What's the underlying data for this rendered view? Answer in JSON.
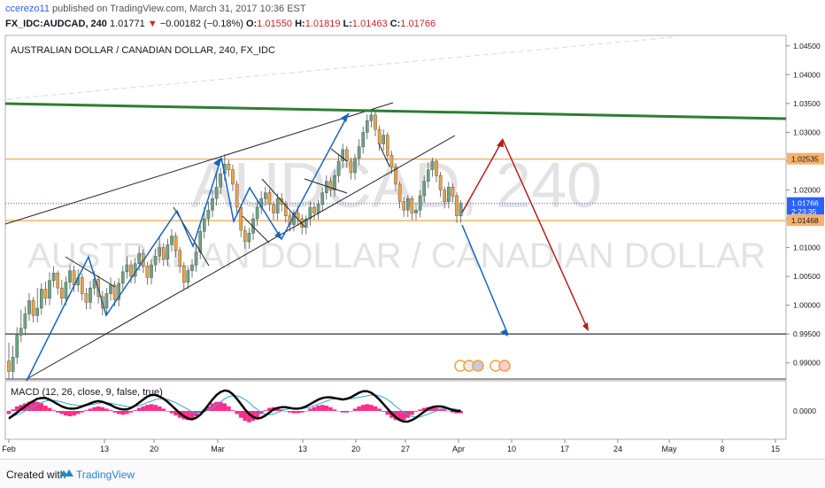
{
  "header": {
    "user": "ccerezo11",
    "published_text": "published on TradingView.com, March 31, 2017 10:36 EST",
    "symbol": "FX_IDC:AUDCAD, 240",
    "last": "1.01771",
    "change_arrow": "▼",
    "change": "−0.00182 (−0.18%)",
    "open_label": "O:",
    "open": "1.01550",
    "high_label": "H:",
    "high": "1.01819",
    "low_label": "L:",
    "low": "1.01463",
    "close_label": "C:",
    "close": "1.01766"
  },
  "chart_data": {
    "type": "candlestick",
    "title": "AUSTRALIAN DOLLAR / CANADIAN DOLLAR, 240, FX_IDC",
    "watermark_symbol": "AUDCAD, 240",
    "watermark_name": "AUSTRALIAN DOLLAR / CANADIAN DOLLAR",
    "x_tick_labels": [
      "Feb",
      "13",
      "20",
      "Mar",
      "13",
      "20",
      "27",
      "Apr",
      "10",
      "17",
      "24",
      "May",
      "8",
      "15"
    ],
    "y_tick_labels": [
      "1.04500",
      "1.04000",
      "1.03500",
      "1.03000",
      "1.02500",
      "1.02000",
      "1.01500",
      "1.01000",
      "1.00500",
      "1.00000",
      "0.99500",
      "0.99000"
    ],
    "ylim": [
      0.9875,
      1.0465
    ],
    "price_labels": [
      {
        "text": "1.02535",
        "value": 1.02535,
        "color": "#f6b26b"
      },
      {
        "text": "1.01766",
        "value": 1.01766,
        "color": "#2962ff"
      },
      {
        "text": "2:23:35",
        "value": 1.0162,
        "color": "#2962ff"
      },
      {
        "text": "1.01468",
        "value": 1.01468,
        "color": "#f6b26b"
      }
    ],
    "horizontal_levels": [
      {
        "value": 1.02535,
        "color": "#f6b26b"
      },
      {
        "value": 1.01468,
        "color": "#f6b26b"
      },
      {
        "value": 0.995,
        "color": "#555555"
      }
    ],
    "candles": [
      [
        0,
        0.9903,
        0.9885,
        0.9935
      ],
      [
        1,
        0.9885,
        0.991,
        0.993
      ],
      [
        2,
        0.991,
        0.9948,
        0.9962
      ],
      [
        3,
        0.9948,
        0.996,
        0.9992
      ],
      [
        4,
        0.996,
        0.9985,
        0.9998
      ],
      [
        5,
        0.9985,
        1.0008,
        1.0021
      ],
      [
        6,
        1.0008,
        0.9982,
        1.0014
      ],
      [
        7,
        0.9982,
        0.9995,
        1.003
      ],
      [
        8,
        0.9995,
        1.0028,
        1.0038
      ],
      [
        9,
        1.0028,
        1.0012,
        1.0041
      ],
      [
        10,
        1.0012,
        1.0043,
        1.0057
      ],
      [
        11,
        1.0043,
        1.0056,
        1.0068
      ],
      [
        12,
        1.0056,
        1.003,
        1.006
      ],
      [
        13,
        1.003,
        1.0012,
        1.0044
      ],
      [
        14,
        1.0012,
        1.004,
        1.005
      ],
      [
        15,
        1.004,
        1.006,
        1.007
      ],
      [
        16,
        1.006,
        1.0035,
        1.0069
      ],
      [
        17,
        1.0035,
        1.0048,
        1.0062
      ],
      [
        18,
        1.0048,
        1.002,
        1.0055
      ],
      [
        19,
        1.002,
        1.0005,
        1.003
      ],
      [
        20,
        1.0005,
        1.003,
        1.0042
      ],
      [
        21,
        1.003,
        1.0045,
        1.0059
      ],
      [
        22,
        1.0045,
        1.0015,
        1.0052
      ],
      [
        23,
        1.0015,
        0.9995,
        1.0025
      ],
      [
        24,
        0.9995,
        1.002,
        1.003
      ],
      [
        25,
        1.002,
        1.0035,
        1.0048
      ],
      [
        26,
        1.0035,
        1.001,
        1.0042
      ],
      [
        27,
        1.001,
        1.0038,
        1.0047
      ],
      [
        28,
        1.0038,
        1.0058,
        1.0068
      ],
      [
        29,
        1.0058,
        1.007,
        1.0085
      ],
      [
        30,
        1.007,
        1.005,
        1.0078
      ],
      [
        31,
        1.005,
        1.0072,
        1.0082
      ],
      [
        32,
        1.0072,
        1.009,
        1.0102
      ],
      [
        33,
        1.009,
        1.0068,
        1.0097
      ],
      [
        34,
        1.0068,
        1.0048,
        1.0075
      ],
      [
        35,
        1.0048,
        1.007,
        1.008
      ],
      [
        36,
        1.007,
        1.0085,
        1.0098
      ],
      [
        37,
        1.0085,
        1.01,
        1.0118
      ],
      [
        38,
        1.01,
        1.008,
        1.0108
      ],
      [
        39,
        1.008,
        1.0105,
        1.0115
      ],
      [
        40,
        1.0105,
        1.012,
        1.0132
      ],
      [
        41,
        1.012,
        1.0095,
        1.0126
      ],
      [
        42,
        1.0095,
        1.0068,
        1.0101
      ],
      [
        43,
        1.0068,
        1.004,
        1.0075
      ],
      [
        44,
        1.004,
        1.006,
        1.0066
      ],
      [
        45,
        1.006,
        1.007,
        1.008
      ],
      [
        46,
        1.007,
        1.0092,
        1.0105
      ],
      [
        47,
        1.0092,
        1.0128,
        1.014
      ],
      [
        48,
        1.0128,
        1.015,
        1.017
      ],
      [
        49,
        1.015,
        1.0165,
        1.018
      ],
      [
        50,
        1.0165,
        1.0185,
        1.02
      ],
      [
        51,
        1.0185,
        1.0205,
        1.0228
      ],
      [
        52,
        1.0205,
        1.0228,
        1.0238
      ],
      [
        53,
        1.0228,
        1.0245,
        1.0262
      ],
      [
        54,
        1.0245,
        1.0235,
        1.0252
      ],
      [
        55,
        1.0235,
        1.021,
        1.0244
      ],
      [
        56,
        1.021,
        1.017,
        1.0216
      ],
      [
        57,
        1.017,
        1.013,
        1.0176
      ],
      [
        58,
        1.013,
        1.011,
        1.0138
      ],
      [
        59,
        1.011,
        1.0125,
        1.0134
      ],
      [
        60,
        1.0125,
        1.015,
        1.016
      ],
      [
        61,
        1.015,
        1.017,
        1.0182
      ],
      [
        62,
        1.017,
        1.0185,
        1.0198
      ],
      [
        63,
        1.0185,
        1.0195,
        1.0206
      ],
      [
        64,
        1.0195,
        1.0175,
        1.0201
      ],
      [
        65,
        1.0175,
        1.016,
        1.0181
      ],
      [
        66,
        1.016,
        1.0185,
        1.0194
      ],
      [
        67,
        1.0185,
        1.0175,
        1.0195
      ],
      [
        68,
        1.0175,
        1.0155,
        1.0181
      ],
      [
        69,
        1.0155,
        1.014,
        1.0162
      ],
      [
        70,
        1.014,
        1.016,
        1.0166
      ],
      [
        71,
        1.016,
        1.015,
        1.0172
      ],
      [
        72,
        1.015,
        1.0135,
        1.0158
      ],
      [
        73,
        1.0135,
        1.015,
        1.0156
      ],
      [
        74,
        1.015,
        1.017,
        1.018
      ],
      [
        75,
        1.017,
        1.016,
        1.0178
      ],
      [
        76,
        1.016,
        1.0175,
        1.0183
      ],
      [
        77,
        1.0175,
        1.0195,
        1.0205
      ],
      [
        78,
        1.0195,
        1.0215,
        1.0225
      ],
      [
        79,
        1.0215,
        1.02,
        1.0222
      ],
      [
        80,
        1.02,
        1.0225,
        1.0235
      ],
      [
        81,
        1.0225,
        1.025,
        1.0262
      ],
      [
        82,
        1.025,
        1.027,
        1.028
      ],
      [
        83,
        1.027,
        1.025,
        1.0276
      ],
      [
        84,
        1.025,
        1.023,
        1.0256
      ],
      [
        85,
        1.023,
        1.0255,
        1.0263
      ],
      [
        86,
        1.0255,
        1.0275,
        1.0288
      ],
      [
        87,
        1.0275,
        1.03,
        1.031
      ],
      [
        88,
        1.03,
        1.032,
        1.0331
      ],
      [
        89,
        1.032,
        1.033,
        1.034
      ],
      [
        90,
        1.033,
        1.0305,
        1.0336
      ],
      [
        91,
        1.0305,
        1.028,
        1.0312
      ],
      [
        92,
        1.028,
        1.0295,
        1.0305
      ],
      [
        93,
        1.0295,
        1.026,
        1.03
      ],
      [
        94,
        1.026,
        1.024,
        1.0268
      ],
      [
        95,
        1.024,
        1.021,
        1.0246
      ],
      [
        96,
        1.021,
        1.018,
        1.0215
      ],
      [
        97,
        1.018,
        1.0165,
        1.0188
      ],
      [
        98,
        1.0165,
        1.0185,
        1.0191
      ],
      [
        99,
        1.0185,
        1.016,
        1.019
      ],
      [
        100,
        1.016,
        1.0165,
        1.0178
      ],
      [
        101,
        1.0165,
        1.019,
        1.02
      ],
      [
        102,
        1.019,
        1.0215,
        1.0225
      ],
      [
        103,
        1.0215,
        1.0235,
        1.0248
      ],
      [
        104,
        1.0235,
        1.025,
        1.0256
      ],
      [
        105,
        1.025,
        1.0225,
        1.0253
      ],
      [
        106,
        1.0225,
        1.02,
        1.0231
      ],
      [
        107,
        1.02,
        1.018,
        1.0206
      ],
      [
        108,
        1.018,
        1.0205,
        1.0214
      ],
      [
        109,
        1.0205,
        1.019,
        1.0211
      ],
      [
        110,
        1.019,
        1.0155,
        1.0196
      ],
      [
        111,
        1.0155,
        1.0177,
        1.0182
      ]
    ],
    "indicator": {
      "label": "MACD (12, 26, close, 9, false, true)",
      "y_tick_labels": [
        "0.0000"
      ],
      "ylim": [
        -0.0035,
        0.0035
      ],
      "histogram": [
        -0.0004,
        0.0002,
        0.0006,
        0.0008,
        0.001,
        0.0012,
        0.0013,
        0.0012,
        0.001,
        0.0007,
        0.0004,
        0.0001,
        -0.0002,
        -0.0004,
        -0.0006,
        -0.0007,
        -0.0006,
        -0.0004,
        -0.0002,
        0.0001,
        0.0003,
        0.0005,
        0.0006,
        0.0005,
        0.0003,
        0.0001,
        -0.0002,
        -0.0004,
        -0.0005,
        -0.0004,
        -0.0002,
        0.0001,
        0.0004,
        0.0006,
        0.0008,
        0.0009,
        0.0008,
        0.0006,
        0.0003,
        0.0,
        -0.0003,
        -0.0006,
        -0.0009,
        -0.0011,
        -0.0012,
        -0.001,
        -0.0007,
        -0.0003,
        0.0002,
        0.0006,
        0.001,
        0.0012,
        0.0012,
        0.001,
        0.0006,
        0.0001,
        -0.0004,
        -0.0009,
        -0.0013,
        -0.0015,
        -0.0013,
        -0.0009,
        -0.0004,
        0.0001,
        0.0004,
        0.0005,
        0.0004,
        0.0002,
        0.0,
        -0.0002,
        -0.0003,
        -0.0003,
        -0.0002,
        0.0,
        0.0003,
        0.0005,
        0.0007,
        0.0008,
        0.0007,
        0.0005,
        0.0002,
        0.0,
        -0.0002,
        -0.0002,
        0.0,
        0.0003,
        0.0006,
        0.0008,
        0.0009,
        0.0008,
        0.0006,
        0.0003,
        -0.0001,
        -0.0005,
        -0.0009,
        -0.0012,
        -0.0013,
        -0.0012,
        -0.0009,
        -0.0005,
        -0.0001,
        0.0002,
        0.0004,
        0.0005,
        0.0005,
        0.0004,
        0.0003,
        0.0002,
        0.0,
        -0.0002,
        -0.0003,
        -0.0003
      ],
      "macd": [
        -0.001,
        -0.0006,
        -0.0002,
        0.0002,
        0.0006,
        0.001,
        0.0013,
        0.0016,
        0.0017,
        0.0017,
        0.0015,
        0.0012,
        0.0009,
        0.0006,
        0.0004,
        0.0003,
        0.0003,
        0.0004,
        0.0006,
        0.0008,
        0.001,
        0.0012,
        0.0013,
        0.0012,
        0.001,
        0.0008,
        0.0005,
        0.0003,
        0.0002,
        0.0002,
        0.0004,
        0.0007,
        0.0011,
        0.0015,
        0.0019,
        0.0021,
        0.0021,
        0.0019,
        0.0016,
        0.0012,
        0.0007,
        0.0002,
        -0.0003,
        -0.0007,
        -0.001,
        -0.0011,
        -0.0009,
        -0.0005,
        0.0001,
        0.0008,
        0.0015,
        0.0021,
        0.0025,
        0.0027,
        0.0026,
        0.0022,
        0.0016,
        0.0009,
        0.0002,
        -0.0004,
        -0.0008,
        -0.001,
        -0.0009,
        -0.0006,
        -0.0002,
        0.0002,
        0.0004,
        0.0005,
        0.0005,
        0.0004,
        0.0003,
        0.0003,
        0.0004,
        0.0006,
        0.0009,
        0.0012,
        0.0015,
        0.0017,
        0.0018,
        0.0018,
        0.0017,
        0.0016,
        0.0015,
        0.0016,
        0.0018,
        0.0021,
        0.0024,
        0.0026,
        0.0026,
        0.0024,
        0.002,
        0.0015,
        0.0009,
        0.0003,
        -0.0003,
        -0.0008,
        -0.0012,
        -0.0014,
        -0.0014,
        -0.0012,
        -0.0009,
        -0.0005,
        -0.0001,
        0.0003,
        0.0005,
        0.0006,
        0.0006,
        0.0005,
        0.0003,
        0.0001,
        0.0,
        0.0
      ],
      "signal": [
        -0.0008,
        -0.0007,
        -0.0005,
        -0.0003,
        0.0,
        0.0003,
        0.0006,
        0.0009,
        0.0011,
        0.0013,
        0.0014,
        0.0014,
        0.0013,
        0.0012,
        0.001,
        0.0009,
        0.0008,
        0.0007,
        0.0007,
        0.0007,
        0.0008,
        0.0009,
        0.001,
        0.0011,
        0.0011,
        0.001,
        0.0009,
        0.0008,
        0.0007,
        0.0006,
        0.0005,
        0.0006,
        0.0007,
        0.0009,
        0.0011,
        0.0013,
        0.0015,
        0.0016,
        0.0016,
        0.0015,
        0.0013,
        0.0011,
        0.0008,
        0.0005,
        0.0002,
        -0.0001,
        -0.0002,
        -0.0002,
        -0.0001,
        0.0001,
        0.0004,
        0.0008,
        0.0012,
        0.0016,
        0.0019,
        0.002,
        0.002,
        0.0018,
        0.0015,
        0.0011,
        0.0006,
        0.0002,
        -0.0002,
        -0.0004,
        -0.0005,
        -0.0004,
        -0.0002,
        0.0,
        0.0002,
        0.0003,
        0.0003,
        0.0003,
        0.0003,
        0.0004,
        0.0005,
        0.0007,
        0.0009,
        0.0011,
        0.0013,
        0.0015,
        0.0016,
        0.0016,
        0.0016,
        0.0016,
        0.0016,
        0.0017,
        0.0018,
        0.0019,
        0.002,
        0.0021,
        0.0021,
        0.002,
        0.0018,
        0.0015,
        0.0011,
        0.0006,
        0.0002,
        -0.0002,
        -0.0005,
        -0.0007,
        -0.0008,
        -0.0008,
        -0.0006,
        -0.0004,
        -0.0002,
        0.0,
        0.0002,
        0.0003,
        0.0003,
        0.0003,
        0.0002,
        0.0001
      ]
    },
    "colors": {
      "candle_up": "#6ba583",
      "candle_down": "#f0a243",
      "trendline_green": "#2e7d32",
      "wave_blue": "#1565c0",
      "arrow_red": "#b71c1c",
      "macd_line": "#000000",
      "signal_line": "#29a5e0",
      "histogram": "#ff2d87"
    }
  },
  "footer": {
    "created_with": "Created with",
    "brand": "TradingView",
    "logo_icon": "tradingview-logo-icon"
  }
}
